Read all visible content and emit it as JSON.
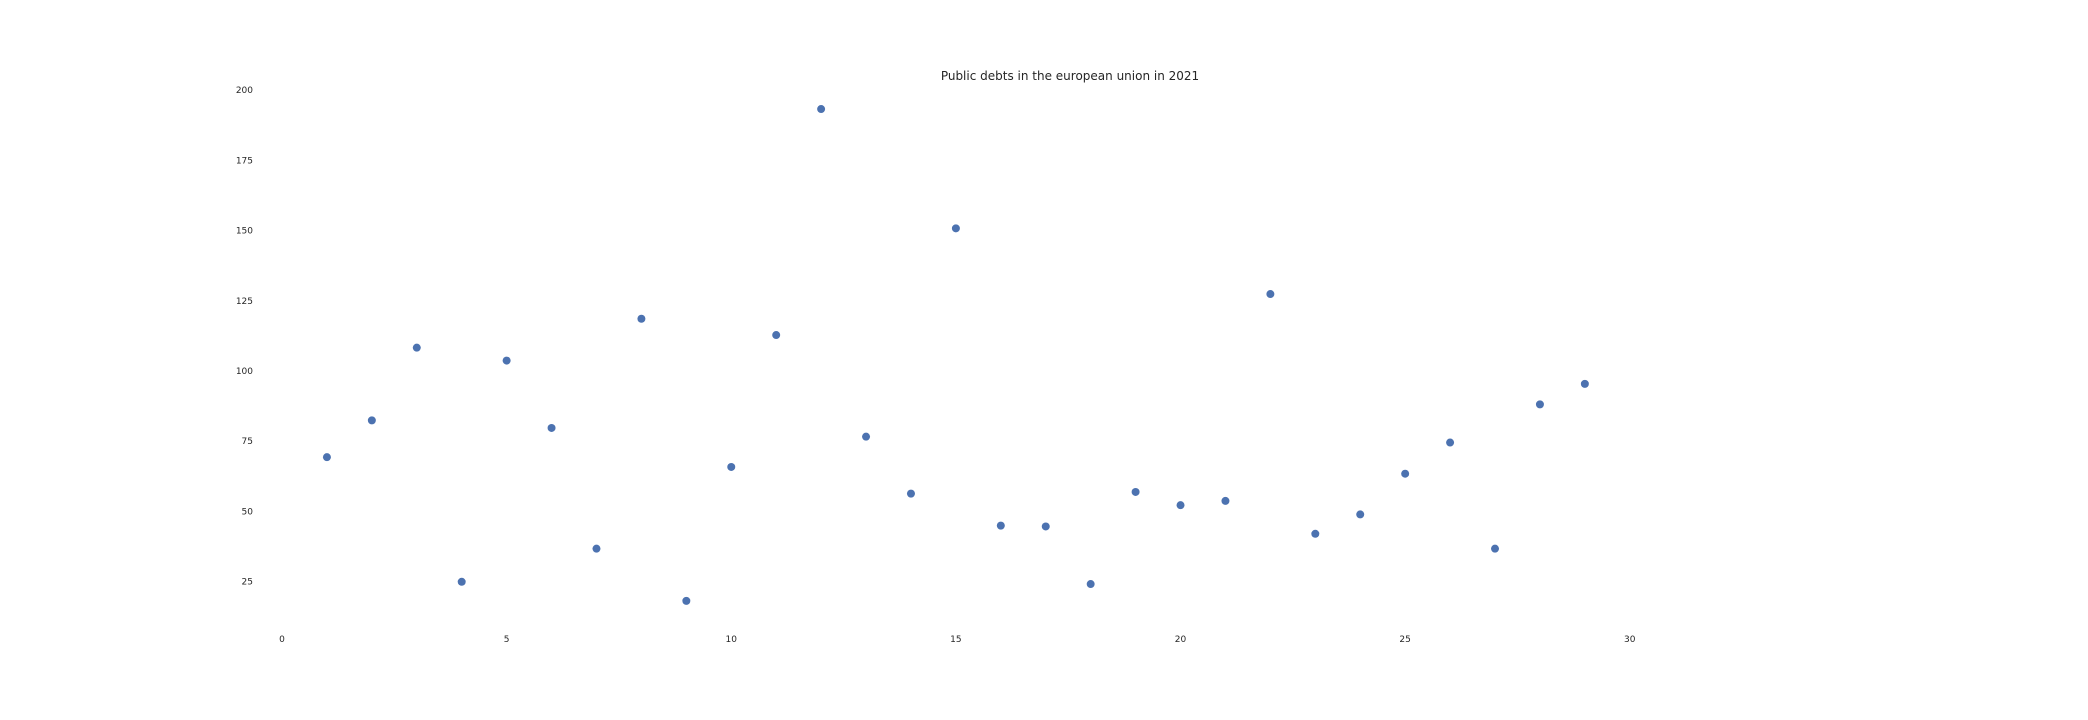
{
  "chart_data": {
    "type": "scatter",
    "title": "Public debts in the european union in 2021",
    "xlabel": "",
    "ylabel": "",
    "xlim": [
      0,
      33.9
    ],
    "ylim": [
      6.3,
      204
    ],
    "grid": false,
    "xticks": [
      0,
      5,
      10,
      15,
      20,
      25,
      30
    ],
    "yticks": [
      25,
      50,
      75,
      100,
      125,
      150,
      175,
      200
    ],
    "point_color": "#4c72b0",
    "series": [
      {
        "x": [
          1,
          2,
          3,
          4,
          5,
          6,
          7,
          8,
          9,
          10,
          11,
          12,
          13,
          14,
          15,
          16,
          17,
          18,
          19,
          20,
          21,
          22,
          23,
          24,
          25,
          26,
          27,
          28,
          29
        ],
        "y": [
          69.3,
          82.4,
          108.3,
          24.9,
          103.7,
          79.7,
          36.7,
          118.6,
          18.1,
          65.8,
          112.8,
          193.3,
          76.6,
          56.3,
          150.8,
          44.9,
          44.6,
          24.1,
          56.9,
          52.2,
          53.7,
          127.4,
          42.0,
          48.9,
          63.4,
          74.5,
          36.7,
          88.1,
          95.4
        ]
      }
    ]
  }
}
